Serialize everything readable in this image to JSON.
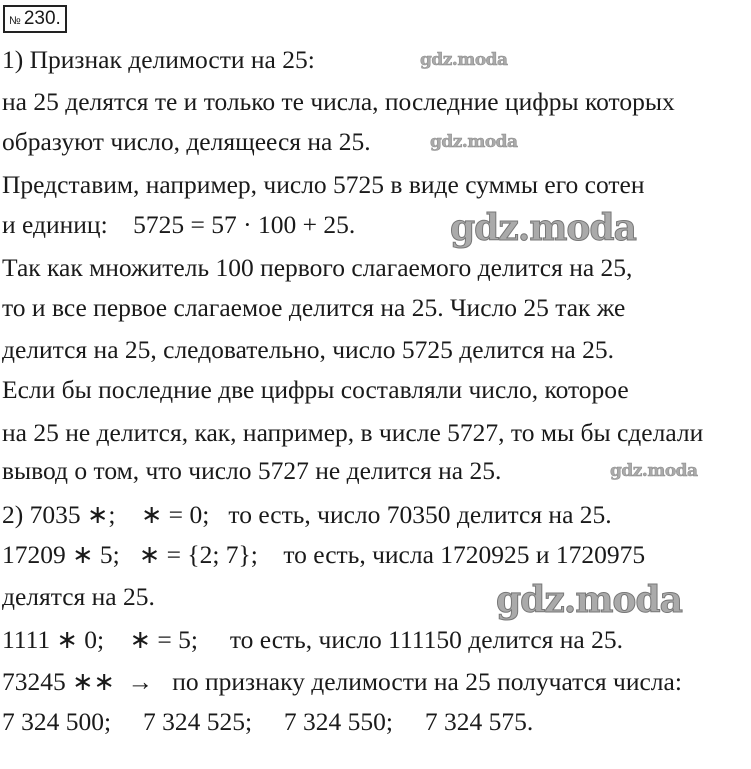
{
  "task": {
    "number_sign": "№",
    "number": "230."
  },
  "lines": [
    "1) Признак делимости на 25:",
    "на 25 делятся те и только те числа, последние цифры которых",
    "образуют число, делящееся на 25.",
    "Представим, например, число 5725 в виде суммы его сотен",
    "и единиц:    5725 = 57 · 100 + 25.",
    "Так как множитель 100 первого слагаемого делится на 25,",
    "то и все первое слагаемое делится на 25. Число 25 так же",
    "делится на 25, следовательно, число 5725 делится на 25.",
    "Если бы последние две цифры составляли число, которое",
    "на 25 не делится, как, например, в числе 5727, то мы бы сделали",
    "вывод о том, что число 5727 не делится на 25.",
    "2) 7035 ∗;    ∗ = 0;   то есть, число 70350 делится на 25.",
    "17209 ∗ 5;   ∗ = {2; 7};    то есть, числа 1720925 и 1720975",
    "делятся на 25.",
    "1111 ∗ 0;    ∗ = 5;     то есть, число 111150 делится на 25.",
    "73245 ∗∗  →   по признаку делимости на 25 получатся числа:",
    "7 324 500;     7 324 525;     7 324 550;     7 324 575."
  ],
  "watermark": "gdz.moda"
}
